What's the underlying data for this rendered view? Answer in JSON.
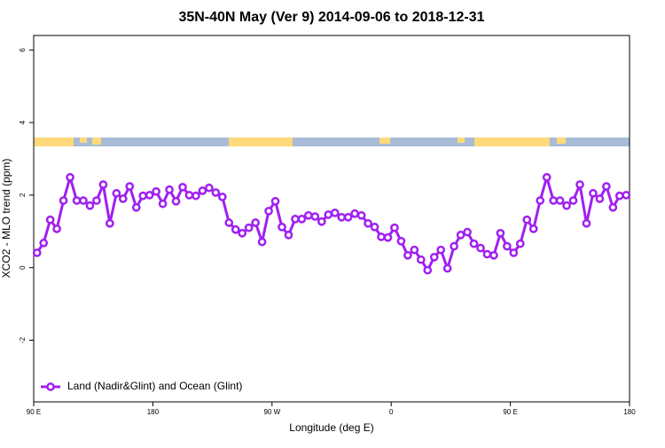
{
  "chart_data": {
    "type": "line",
    "title": "35N-40N May (Ver 9)   2014-09-06 to 2018-12-31",
    "x_label": "Longitude (deg E)",
    "y_label": "XCO2 - MLO trend (ppm)",
    "x": [
      92.5,
      97.5,
      102.5,
      107.5,
      112.5,
      117.5,
      122.5,
      127.5,
      132.5,
      137.5,
      142.5,
      147.5,
      152.5,
      157.5,
      162.5,
      167.5,
      172.5,
      177.5,
      182.5,
      187.5,
      192.5,
      197.5,
      202.5,
      207.5,
      212.5,
      217.5,
      222.5,
      227.5,
      232.5,
      237.5,
      242.5,
      247.5,
      252.5,
      257.5,
      262.5,
      267.5,
      272.5,
      277.5,
      282.5,
      287.5,
      292.5,
      297.5,
      302.5,
      307.5,
      312.5,
      317.5,
      322.5,
      327.5,
      332.5,
      337.5,
      342.5,
      347.5,
      352.5,
      357.5,
      362.5,
      367.5,
      372.5,
      377.5,
      382.5,
      387.5,
      392.5,
      397.5,
      402.5,
      407.5,
      412.5,
      417.5,
      422.5,
      427.5,
      432.5,
      437.5,
      442.5,
      447.5,
      452.5,
      457.5,
      462.5,
      467.5,
      472.5,
      477.5,
      482.5,
      487.5,
      492.5,
      497.5,
      502.5,
      507.5,
      512.5,
      517.5,
      522.5,
      527.5,
      532.5,
      537.5
    ],
    "series": [
      {
        "name": "Land (Nadir&Glint) and Ocean (Glint)",
        "color": "#a020f0",
        "values": [
          0.41,
          0.68,
          1.32,
          1.07,
          1.85,
          2.49,
          1.85,
          1.85,
          1.71,
          1.85,
          2.29,
          1.22,
          2.05,
          1.9,
          2.24,
          1.66,
          1.98,
          2.0,
          2.1,
          1.76,
          2.15,
          1.83,
          2.22,
          2.0,
          1.98,
          2.12,
          2.2,
          2.07,
          1.95,
          1.24,
          1.05,
          0.95,
          1.1,
          1.24,
          0.71,
          1.56,
          1.83,
          1.12,
          0.9,
          1.34,
          1.34,
          1.44,
          1.41,
          1.27,
          1.46,
          1.51,
          1.39,
          1.39,
          1.49,
          1.44,
          1.22,
          1.12,
          0.85,
          0.83,
          1.1,
          0.73,
          0.34,
          0.49,
          0.22,
          -0.07,
          0.29,
          0.49,
          -0.02,
          0.59,
          0.9,
          0.98,
          0.66,
          0.54,
          0.37,
          0.34,
          0.95,
          0.59,
          0.41,
          0.66,
          1.32,
          1.07,
          1.85,
          2.49,
          1.85,
          1.85,
          1.71,
          1.85,
          2.29,
          1.22,
          2.05,
          1.9,
          2.24,
          1.66,
          1.98,
          2.0
        ]
      }
    ],
    "xlim": [
      90,
      540
    ],
    "xticks": [
      {
        "value": 90,
        "label": "90 E"
      },
      180,
      {
        "value": 270,
        "label": "90 W"
      },
      {
        "value": 360,
        "label": "0"
      },
      {
        "value": 450,
        "label": "90 E"
      },
      {
        "value": 540,
        "label": "180"
      }
    ],
    "ylim": [
      -3.7,
      6.4
    ],
    "yticks": [
      -2,
      0,
      2,
      4,
      6
    ],
    "legend": "bottom-left"
  }
}
